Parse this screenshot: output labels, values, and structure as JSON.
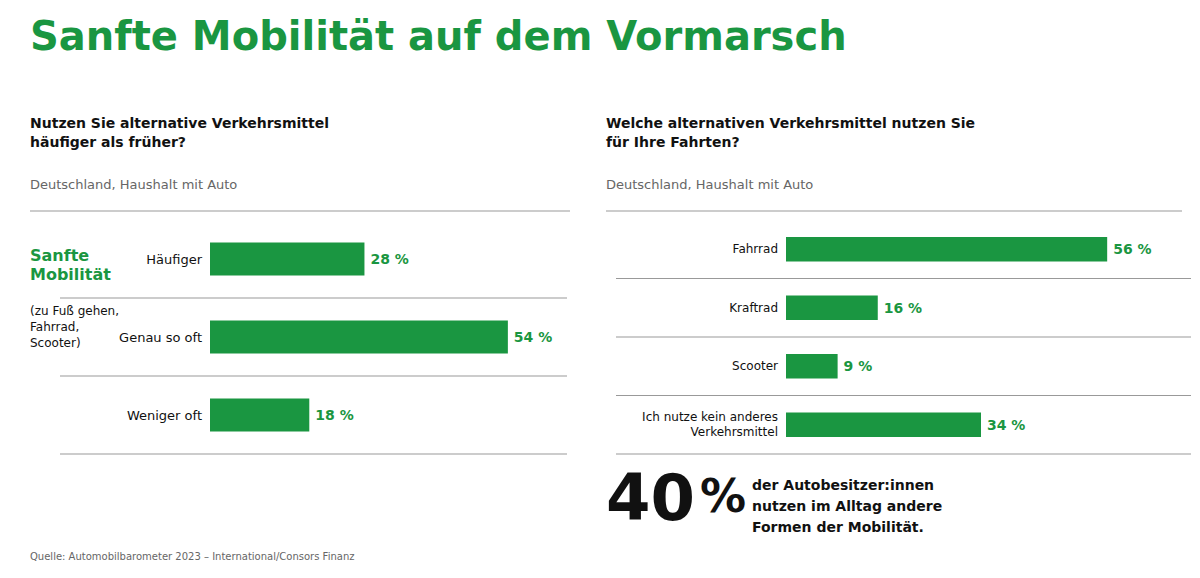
{
  "title": "Sanfte Mobilität auf dem Vormarsch",
  "annotations": [
    "40",
    "%",
    "der Autobesitzer:innen\nnutzen im Alltag andere\nFormen der Mobilität."
  ],
  "source": "Quelle: Automobilbarometer 2023 – International/Consors Finanz",
  "chart_data": [
    {
      "type": "bar",
      "orientation": "horizontal",
      "title": "Nutzen Sie alternative Verkehrsmittel\nhäufiger als früher?",
      "subtitle": "Deutschland, Haushalt mit Auto",
      "annotations": [
        "Sanfte\nMobilität",
        "(zu Fuß gehen,\nFahrrad,\nScooter)"
      ],
      "categories": [
        "Häufiger",
        "Genau so oft",
        "Weniger oft"
      ],
      "values": [
        28,
        54,
        18
      ],
      "value_labels": [
        "28 %",
        "54 %",
        "18 %"
      ],
      "color": "#1a9641",
      "xlim": [
        0,
        62
      ],
      "data_labels": true,
      "tick_labels": "y"
    },
    {
      "type": "bar",
      "orientation": "horizontal",
      "title": "Welche alternativen Verkehrsmittel nutzen Sie\nfür Ihre Fahrten?",
      "subtitle": "Deutschland, Haushalt mit Auto",
      "categories": [
        "Fahrrad",
        "Kraftrad",
        "Scooter",
        "Ich nutze kein anderes\nVerkehrsmittel"
      ],
      "values": [
        56,
        16,
        9,
        34
      ],
      "value_labels": [
        "56 %",
        "16 %",
        "9 %",
        "34 %"
      ],
      "color": "#1a9641",
      "xlim": [
        0,
        68
      ],
      "data_labels": true,
      "tick_labels": "y"
    }
  ]
}
